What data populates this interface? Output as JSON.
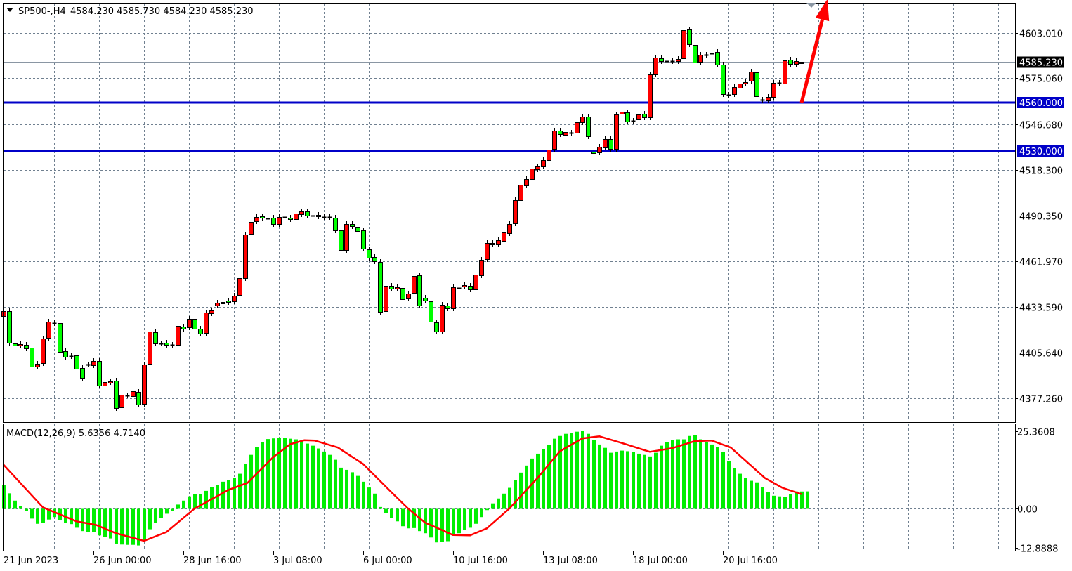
{
  "header": {
    "dropdown_icon": "triangle-down-icon",
    "symbol": "SP500-,H4",
    "ohlc": "4584.230 4585.730 4584.230 4585.230"
  },
  "macd_label": "MACD(12,26,9) 5.6356 4.7140",
  "colors": {
    "bull_candle": "#ff0000",
    "bear_candle": "#00ff00",
    "grid": "#708090",
    "level_line": "#0000c8",
    "histogram": "#00ee00",
    "signal": "#ff0000",
    "arrow": "#ff0000",
    "current_price_box": "#000000"
  },
  "chart_data": [
    {
      "type": "candlestick",
      "symbol": "SP500-",
      "timeframe": "H4",
      "ylim": [
        4362.96,
        4621.24
      ],
      "grid": true,
      "price_ticks": [
        "4603.010",
        "4575.060",
        "4546.680",
        "4518.300",
        "4490.350",
        "4461.970",
        "4433.590",
        "4405.640",
        "4377.260"
      ],
      "time_ticks": [
        {
          "label": "21 Jun 2023",
          "bar": 0
        },
        {
          "label": "26 Jun 00:00",
          "bar": 16
        },
        {
          "label": "28 Jun 16:00",
          "bar": 32
        },
        {
          "label": "3 Jul 08:00",
          "bar": 48
        },
        {
          "label": "6 Jul 00:00",
          "bar": 64
        },
        {
          "label": "10 Jul 16:00",
          "bar": 80
        },
        {
          "label": "13 Jul 08:00",
          "bar": 96
        },
        {
          "label": "18 Jul 00:00",
          "bar": 112
        },
        {
          "label": "20 Jul 16:00",
          "bar": 128
        }
      ],
      "current_price": "4585.230",
      "levels": [
        "4560.000",
        "4530.000"
      ],
      "arrow": {
        "from": {
          "bar": 142,
          "price": 4560
        },
        "to": {
          "bar": 146.6,
          "price": 4624
        }
      },
      "candles_oc": [
        [
          4428.0,
          4431.0
        ],
        [
          4431.1,
          4411.6
        ],
        [
          4411.1,
          4409.8
        ],
        [
          4410.3,
          4410.7
        ],
        [
          4410.3,
          4408.1
        ],
        [
          4408.5,
          4396.8
        ],
        [
          4396.8,
          4398.5
        ],
        [
          4398.9,
          4414.2
        ],
        [
          4414.6,
          4424.6
        ],
        [
          4423.7,
          4423.7
        ],
        [
          4423.7,
          4405.9
        ],
        [
          4406.4,
          4402.9
        ],
        [
          4403.3,
          4403.3
        ],
        [
          4403.7,
          4395.5
        ],
        [
          4395.9,
          4389.9
        ],
        [
          4398.1,
          4398.1
        ],
        [
          4397.7,
          4400.3
        ],
        [
          4400.3,
          4385.1
        ],
        [
          4385.1,
          4387.3
        ],
        [
          4387.3,
          4387.7
        ],
        [
          4388.1,
          4371.2
        ],
        [
          4371.6,
          4379.4
        ],
        [
          4379.0,
          4379.0
        ],
        [
          4378.6,
          4381.6
        ],
        [
          4381.2,
          4373.4
        ],
        [
          4373.8,
          4398.1
        ],
        [
          4398.5,
          4418.5
        ],
        [
          4418.1,
          4411.1
        ],
        [
          4411.1,
          4411.1
        ],
        [
          4411.6,
          4410.3
        ],
        [
          4410.3,
          4410.3
        ],
        [
          4410.3,
          4422.0
        ],
        [
          4421.6,
          4420.2
        ],
        [
          4421.1,
          4426.3
        ],
        [
          4426.3,
          4420.2
        ],
        [
          4420.2,
          4417.2
        ],
        [
          4417.6,
          4430.2
        ],
        [
          4429.8,
          4431.5
        ],
        [
          4434.6,
          4436.3
        ],
        [
          4435.9,
          4436.7
        ],
        [
          4437.6,
          4436.7
        ],
        [
          4437.2,
          4440.6
        ],
        [
          4441.1,
          4451.5
        ],
        [
          4451.5,
          4478.4
        ],
        [
          4478.8,
          4486.2
        ],
        [
          4486.7,
          4489.3
        ],
        [
          4489.7,
          4488.8
        ],
        [
          4488.4,
          4488.4
        ],
        [
          4488.8,
          4484.9
        ],
        [
          4484.9,
          4489.3
        ],
        [
          4489.3,
          4489.3
        ],
        [
          4488.8,
          4488.0
        ],
        [
          4488.0,
          4491.4
        ],
        [
          4491.0,
          4492.7
        ],
        [
          4492.7,
          4490.1
        ],
        [
          4490.1,
          4490.1
        ],
        [
          4489.7,
          4490.6
        ],
        [
          4489.3,
          4489.3
        ],
        [
          4489.3,
          4489.3
        ],
        [
          4488.8,
          4481.0
        ],
        [
          4481.0,
          4468.9
        ],
        [
          4468.9,
          4484.9
        ],
        [
          4484.9,
          4483.6
        ],
        [
          4483.2,
          4480.6
        ],
        [
          4481.0,
          4469.7
        ],
        [
          4469.3,
          4464.1
        ],
        [
          4464.5,
          4461.9
        ],
        [
          4461.5,
          4430.7
        ],
        [
          4431.1,
          4446.7
        ],
        [
          4446.7,
          4445.0
        ],
        [
          4445.0,
          4445.9
        ],
        [
          4445.4,
          4438.5
        ],
        [
          4438.9,
          4441.9
        ],
        [
          4442.4,
          4452.8
        ],
        [
          4453.2,
          4434.6
        ],
        [
          4439.3,
          4437.6
        ],
        [
          4437.2,
          4424.6
        ],
        [
          4424.1,
          4418.5
        ],
        [
          4418.5,
          4435.0
        ],
        [
          4434.6,
          4432.8
        ],
        [
          4432.8,
          4445.9
        ],
        [
          4445.4,
          4445.4
        ],
        [
          4446.3,
          4447.2
        ],
        [
          4446.7,
          4444.6
        ],
        [
          4444.6,
          4453.7
        ],
        [
          4453.2,
          4462.8
        ],
        [
          4463.2,
          4473.2
        ],
        [
          4473.2,
          4472.3
        ],
        [
          4472.3,
          4474.9
        ],
        [
          4474.5,
          4479.7
        ],
        [
          4479.3,
          4484.9
        ],
        [
          4485.4,
          4499.7
        ],
        [
          4499.7,
          4509.2
        ],
        [
          4508.8,
          4512.7
        ],
        [
          4512.7,
          4519.2
        ],
        [
          4518.8,
          4520.5
        ],
        [
          4520.5,
          4524.4
        ],
        [
          4524.4,
          4530.9
        ],
        [
          4531.4,
          4542.7
        ],
        [
          4542.7,
          4540.5
        ],
        [
          4540.1,
          4541.8
        ],
        [
          4541.4,
          4541.4
        ],
        [
          4541.4,
          4547.9
        ],
        [
          4547.9,
          4551.3
        ],
        [
          4551.3,
          4539.2
        ],
        [
          4529.6,
          4529.2
        ],
        [
          4529.2,
          4532.7
        ],
        [
          4532.2,
          4537.5
        ],
        [
          4537.5,
          4531.4
        ],
        [
          4531.4,
          4552.6
        ],
        [
          4553.1,
          4554.4
        ],
        [
          4553.9,
          4548.3
        ],
        [
          4548.7,
          4548.7
        ],
        [
          4549.6,
          4552.6
        ],
        [
          4553.1,
          4550.9
        ],
        [
          4550.9,
          4577.4
        ],
        [
          4577.4,
          4587.8
        ],
        [
          4587.4,
          4585.6
        ],
        [
          4585.6,
          4585.6
        ],
        [
          4585.6,
          4585.6
        ],
        [
          4585.6,
          4586.9
        ],
        [
          4587.4,
          4604.7
        ],
        [
          4605.2,
          4596.1
        ],
        [
          4595.6,
          4584.8
        ],
        [
          4585.2,
          4589.5
        ],
        [
          4589.5,
          4589.5
        ],
        [
          4590.4,
          4590.4
        ],
        [
          4591.3,
          4583.5
        ],
        [
          4583.5,
          4565.2
        ],
        [
          4564.8,
          4564.8
        ],
        [
          4565.2,
          4569.6
        ],
        [
          4569.1,
          4571.7
        ],
        [
          4571.7,
          4572.6
        ],
        [
          4573.5,
          4579.1
        ],
        [
          4578.7,
          4563.9
        ],
        [
          4561.8,
          4561.8
        ],
        [
          4561.3,
          4563.5
        ],
        [
          4563.5,
          4572.2
        ],
        [
          4572.2,
          4572.2
        ],
        [
          4571.7,
          4586.1
        ],
        [
          4586.5,
          4583.9
        ],
        [
          4583.9,
          4585.6
        ],
        [
          4584.23,
          4585.23
        ]
      ]
    },
    {
      "type": "bar+line",
      "indicator": "MACD(12,26,9)",
      "ylim": [
        -13.81,
        27.66
      ],
      "ticks": [
        "25.3608",
        "0.00",
        "-12.8888"
      ],
      "histogram": [
        7.7,
        5.0,
        2.6,
        0.8,
        -0.9,
        -3.3,
        -5.0,
        -4.8,
        -3.6,
        -2.8,
        -3.8,
        -4.6,
        -5.1,
        -6.3,
        -7.4,
        -7.7,
        -7.7,
        -8.8,
        -9.4,
        -9.8,
        -11.5,
        -11.8,
        -11.9,
        -11.9,
        -12.1,
        -10.4,
        -6.8,
        -4.8,
        -3.1,
        -1.7,
        -0.8,
        1.3,
        2.6,
        4.0,
        4.7,
        4.7,
        5.8,
        7.0,
        7.8,
        8.8,
        9.3,
        10.0,
        11.4,
        14.6,
        17.6,
        20.1,
        21.7,
        22.8,
        23.0,
        23.1,
        23.1,
        22.9,
        22.7,
        22.3,
        21.3,
        20.6,
        19.7,
        18.7,
        17.6,
        16.0,
        13.4,
        12.7,
        11.9,
        10.7,
        8.8,
        6.9,
        4.9,
        0.5,
        -1.5,
        -3.1,
        -4.2,
        -5.8,
        -6.5,
        -6.4,
        -7.4,
        -8.1,
        -9.5,
        -11.1,
        -10.9,
        -10.7,
        -8.4,
        -8.1,
        -7.0,
        -6.3,
        -5.0,
        -2.8,
        -0.5,
        1.7,
        3.3,
        4.9,
        6.8,
        9.3,
        11.8,
        14.1,
        16.4,
        18.0,
        19.4,
        20.8,
        22.9,
        23.8,
        24.5,
        24.7,
        25.2,
        25.4,
        24.5,
        22.4,
        21.0,
        19.9,
        18.3,
        18.7,
        19.0,
        18.8,
        18.5,
        18.0,
        17.6,
        17.1,
        18.3,
        20.6,
        21.7,
        22.4,
        22.7,
        22.7,
        23.8,
        24.0,
        22.7,
        21.7,
        21.0,
        20.1,
        18.5,
        15.5,
        13.2,
        11.4,
        10.0,
        9.1,
        8.6,
        7.0,
        5.4,
        4.2,
        4.0,
        3.8,
        4.7,
        5.6,
        5.6,
        5.6356
      ],
      "signal_points": [
        {
          "bar": 0,
          "value": 14.4
        },
        {
          "bar": 7,
          "value": 0.4
        },
        {
          "bar": 13,
          "value": -4.2
        },
        {
          "bar": 16.5,
          "value": -5.4
        },
        {
          "bar": 20,
          "value": -8.1
        },
        {
          "bar": 25,
          "value": -10.6
        },
        {
          "bar": 29,
          "value": -7.7
        },
        {
          "bar": 34,
          "value": 0
        },
        {
          "bar": 40,
          "value": 6.1
        },
        {
          "bar": 43.4,
          "value": 8.4
        },
        {
          "bar": 48,
          "value": 16.9
        },
        {
          "bar": 51,
          "value": 21.1
        },
        {
          "bar": 53.5,
          "value": 22.4
        },
        {
          "bar": 55.4,
          "value": 22.3
        },
        {
          "bar": 59.5,
          "value": 20.0
        },
        {
          "bar": 64,
          "value": 14.6
        },
        {
          "bar": 69,
          "value": 5.4
        },
        {
          "bar": 72,
          "value": 0
        },
        {
          "bar": 75,
          "value": -4.6
        },
        {
          "bar": 80,
          "value": -8.7
        },
        {
          "bar": 83,
          "value": -8.8
        },
        {
          "bar": 86,
          "value": -6.5
        },
        {
          "bar": 90,
          "value": 0
        },
        {
          "bar": 95,
          "value": 10.0
        },
        {
          "bar": 99,
          "value": 18.8
        },
        {
          "bar": 103,
          "value": 23.0
        },
        {
          "bar": 106,
          "value": 23.7
        },
        {
          "bar": 110,
          "value": 21.5
        },
        {
          "bar": 115,
          "value": 18.6
        },
        {
          "bar": 119,
          "value": 19.8
        },
        {
          "bar": 123,
          "value": 22.1
        },
        {
          "bar": 126,
          "value": 22.3
        },
        {
          "bar": 129.4,
          "value": 20.0
        },
        {
          "bar": 135.5,
          "value": 10.0
        },
        {
          "bar": 138.6,
          "value": 6.8
        },
        {
          "bar": 142,
          "value": 4.714
        }
      ]
    }
  ]
}
